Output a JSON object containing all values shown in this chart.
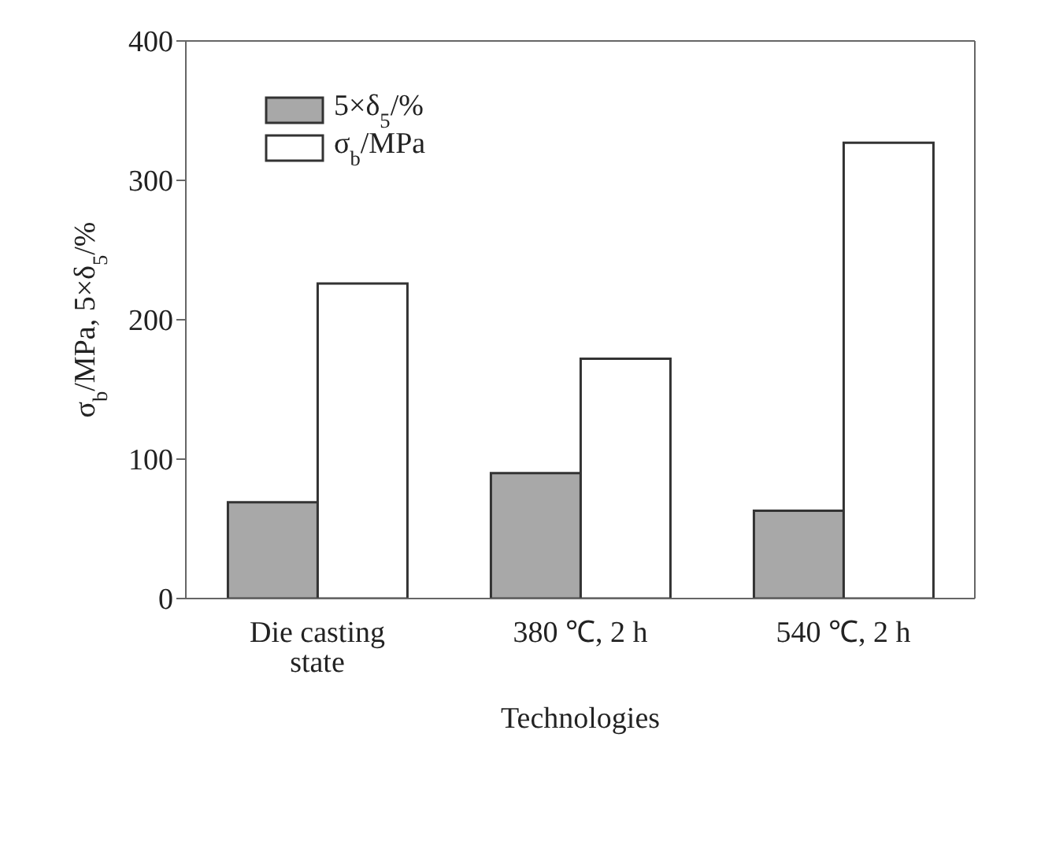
{
  "chart_data": {
    "type": "bar",
    "xlabel": "Technologies",
    "ylabel": "σ$_{b}$/MPa, 5×δ$_{5}$/%",
    "categories": [
      "Die casting state",
      "380 ℃, 2 h",
      "540 ℃, 2 h"
    ],
    "series": [
      {
        "name": "5×δ$_{5}$/%",
        "color": "#a8a8a8",
        "values": [
          69,
          90,
          63
        ]
      },
      {
        "name": "σ$_{b}$/MPa",
        "color": "#ffffff",
        "values": [
          226,
          172,
          327
        ]
      }
    ],
    "ylim": [
      0,
      400
    ],
    "yticks": [
      0,
      100,
      200,
      300,
      400
    ],
    "legend": "top left"
  }
}
